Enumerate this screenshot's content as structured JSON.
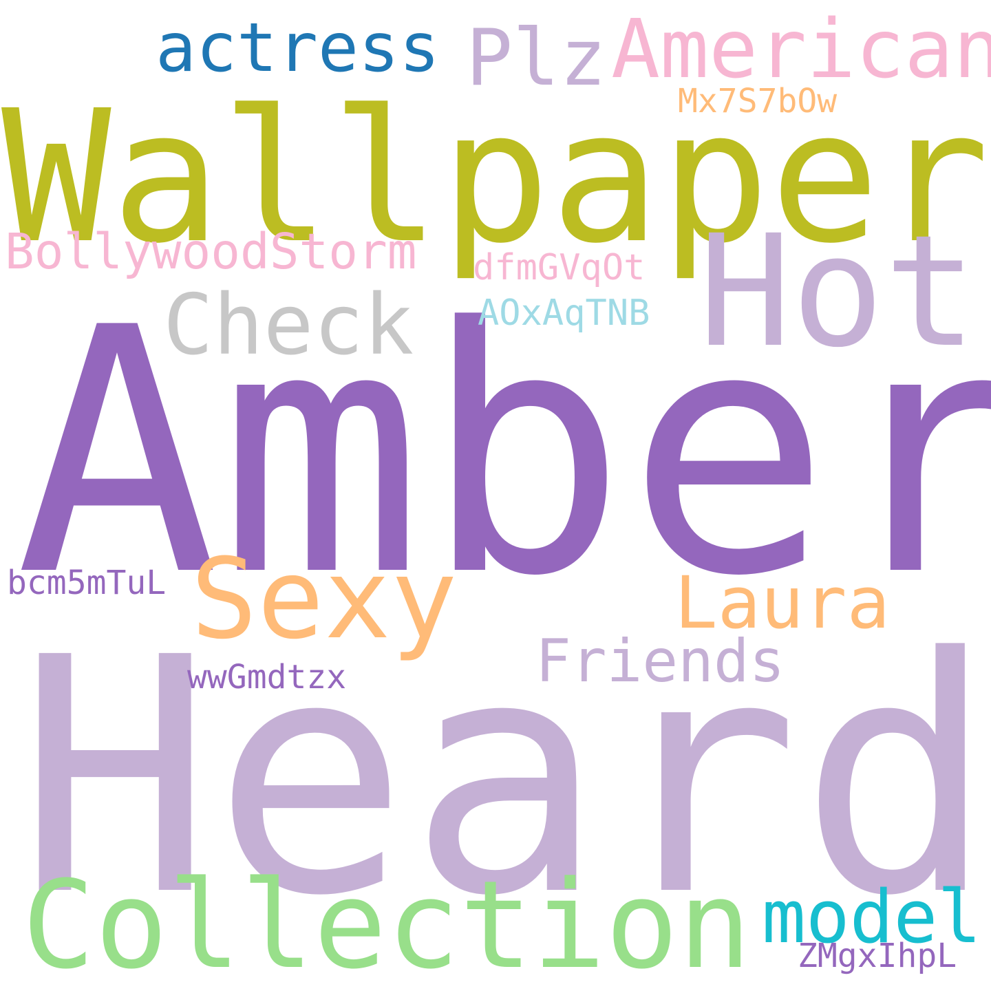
{
  "words": {
    "amber": {
      "text": "Amber",
      "color": "#9467bd"
    },
    "heard": {
      "text": "Heard",
      "color": "#c5b0d5"
    },
    "wallpaper": {
      "text": "Wallpaper",
      "color": "#bcbd22"
    },
    "hot": {
      "text": "Hot",
      "color": "#c5b0d5"
    },
    "collection": {
      "text": "Collection",
      "color": "#98df8a"
    },
    "sexy": {
      "text": "Sexy",
      "color": "#ffbb78"
    },
    "american": {
      "text": "American",
      "color": "#f7b6d2"
    },
    "check": {
      "text": "Check",
      "color": "#c7c7c7"
    },
    "actress": {
      "text": "actress",
      "color": "#1f77b4"
    },
    "plz": {
      "text": "Plz",
      "color": "#c5b0d5"
    },
    "laura": {
      "text": "Laura",
      "color": "#ffbb78"
    },
    "model": {
      "text": "model",
      "color": "#17becf"
    },
    "friends": {
      "text": "Friends",
      "color": "#c5b0d5"
    },
    "bollywoodstorm": {
      "text": "BollywoodStorm",
      "color": "#f7b6d2"
    },
    "dfmgvqot": {
      "text": "dfmGVqOt",
      "color": "#f7b6d2"
    },
    "aoxaqtnb": {
      "text": "AOxAqTNB",
      "color": "#9edae5"
    },
    "mx7s7b0w": {
      "text": "Mx7S7bOw",
      "color": "#ffbb78"
    },
    "bcm5mtul": {
      "text": "bcm5mTuL",
      "color": "#9467bd"
    },
    "wwgmdtzx": {
      "text": "wwGmdtzx",
      "color": "#9467bd"
    },
    "zmgxihpl": {
      "text": "ZMgxIhpL",
      "color": "#9467bd"
    }
  }
}
